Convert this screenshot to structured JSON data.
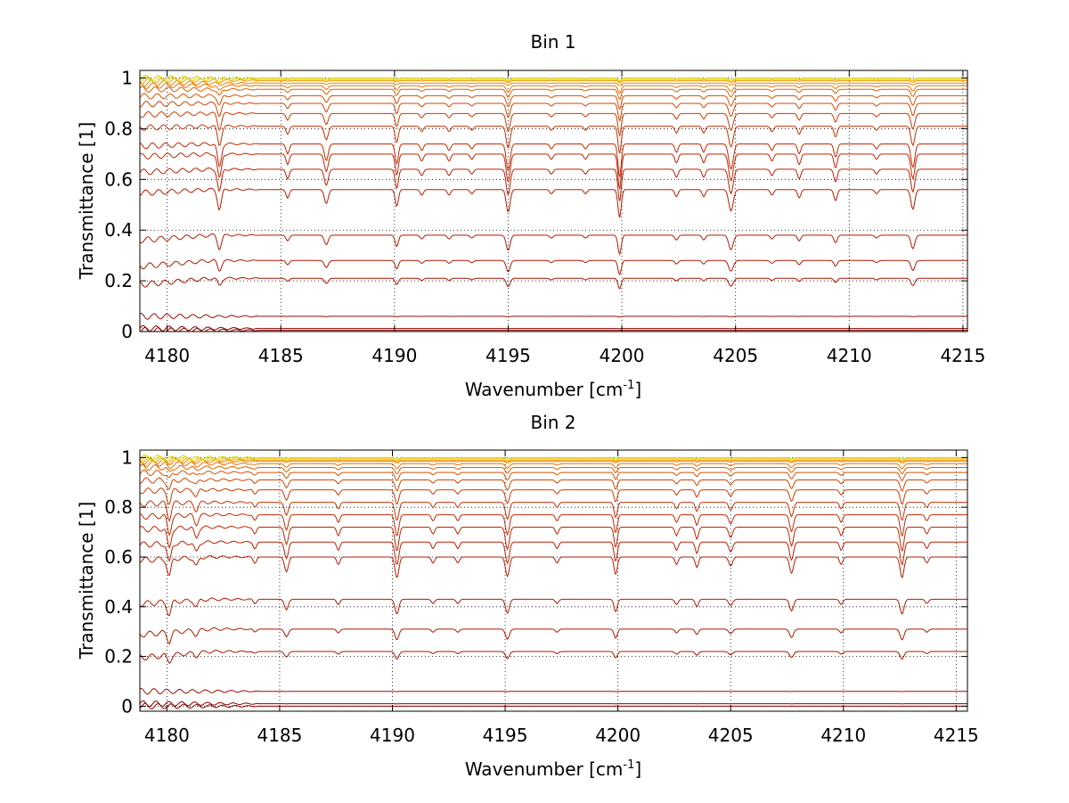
{
  "chart_data": [
    {
      "type": "line",
      "title": "Bin 1",
      "xlabel": "Wavenumber [cm",
      "xlabel_sup": "-1",
      "xlabel_end": "]",
      "ylabel": "Transmittance [1]",
      "xlim": [
        4178.8,
        4215.2
      ],
      "ylim": [
        0,
        1.03
      ],
      "grid": true,
      "xticks": [
        4180,
        4185,
        4190,
        4195,
        4200,
        4205,
        4210,
        4215
      ],
      "xtick_labels": [
        "4180",
        "4185",
        "4190",
        "4195",
        "4200",
        "4205",
        "4210",
        "4215"
      ],
      "yticks": [
        0,
        0.2,
        0.4,
        0.6,
        0.8,
        1
      ],
      "ytick_labels": [
        "0",
        "0.2",
        "0.4",
        "0.6",
        "0.8",
        "1"
      ],
      "baseline_levels": [
        0.005,
        0.012,
        0.06,
        0.21,
        0.28,
        0.38,
        0.56,
        0.64,
        0.7,
        0.74,
        0.81,
        0.86,
        0.9,
        0.93,
        0.955,
        0.97,
        0.98,
        0.99,
        0.995,
        1.0
      ],
      "line_colors": [
        "#8b0000",
        "#8b0000",
        "#9a0c00",
        "#a81400",
        "#b01800",
        "#b41a00",
        "#b81c00",
        "#bc1e00",
        "#c02400",
        "#c42800",
        "#c83000",
        "#cc3a00",
        "#d04400",
        "#d85000",
        "#e06000",
        "#e87200",
        "#f08400",
        "#f59a00",
        "#f8c000",
        "#c8e000"
      ],
      "absorption_lines": [
        {
          "x": 4182.3,
          "depth": 0.14,
          "width": 0.12
        },
        {
          "x": 4185.3,
          "depth": 0.06,
          "width": 0.1
        },
        {
          "x": 4187.0,
          "depth": 0.1,
          "width": 0.12
        },
        {
          "x": 4190.1,
          "depth": 0.12,
          "width": 0.1
        },
        {
          "x": 4191.2,
          "depth": 0.04,
          "width": 0.1
        },
        {
          "x": 4192.4,
          "depth": 0.04,
          "width": 0.1
        },
        {
          "x": 4193.4,
          "depth": 0.03,
          "width": 0.1
        },
        {
          "x": 4195.0,
          "depth": 0.16,
          "width": 0.12
        },
        {
          "x": 4196.9,
          "depth": 0.03,
          "width": 0.1
        },
        {
          "x": 4198.4,
          "depth": 0.03,
          "width": 0.1
        },
        {
          "x": 4199.9,
          "depth": 0.2,
          "width": 0.1
        },
        {
          "x": 4202.4,
          "depth": 0.05,
          "width": 0.1
        },
        {
          "x": 4203.6,
          "depth": 0.05,
          "width": 0.1
        },
        {
          "x": 4204.8,
          "depth": 0.15,
          "width": 0.14
        },
        {
          "x": 4206.6,
          "depth": 0.04,
          "width": 0.1
        },
        {
          "x": 4207.8,
          "depth": 0.06,
          "width": 0.1
        },
        {
          "x": 4209.4,
          "depth": 0.08,
          "width": 0.1
        },
        {
          "x": 4211.2,
          "depth": 0.03,
          "width": 0.1
        },
        {
          "x": 4212.8,
          "depth": 0.14,
          "width": 0.12
        }
      ]
    },
    {
      "type": "line",
      "title": "Bin 2",
      "xlabel": "Wavenumber [cm",
      "xlabel_sup": "-1",
      "xlabel_end": "]",
      "ylabel": "Transmittance [1]",
      "xlim": [
        4178.8,
        4215.5
      ],
      "ylim": [
        -0.02,
        1.03
      ],
      "grid": true,
      "xticks": [
        4180,
        4185,
        4190,
        4195,
        4200,
        4205,
        4210,
        4215
      ],
      "xtick_labels": [
        "4180",
        "4185",
        "4190",
        "4195",
        "4200",
        "4205",
        "4210",
        "4215"
      ],
      "yticks": [
        0,
        0.2,
        0.4,
        0.6,
        0.8,
        1
      ],
      "ytick_labels": [
        "0",
        "0.2",
        "0.4",
        "0.6",
        "0.8",
        "1"
      ],
      "baseline_levels": [
        0.0,
        0.01,
        0.06,
        0.22,
        0.31,
        0.43,
        0.6,
        0.66,
        0.72,
        0.77,
        0.82,
        0.87,
        0.91,
        0.94,
        0.96,
        0.975,
        0.985,
        0.99,
        0.995,
        1.0
      ],
      "line_colors": [
        "#8b0000",
        "#8b0000",
        "#9a0c00",
        "#a81400",
        "#b01800",
        "#b41a00",
        "#b81c00",
        "#bc1e00",
        "#c02400",
        "#c42800",
        "#c83000",
        "#cc3a00",
        "#d04400",
        "#d85000",
        "#e06000",
        "#e87200",
        "#f08400",
        "#f59a00",
        "#f8c000",
        "#c8e000"
      ],
      "absorption_lines": [
        {
          "x": 4180.1,
          "depth": 0.12,
          "width": 0.12
        },
        {
          "x": 4181.3,
          "depth": 0.06,
          "width": 0.12
        },
        {
          "x": 4183.9,
          "depth": 0.04,
          "width": 0.1
        },
        {
          "x": 4185.3,
          "depth": 0.1,
          "width": 0.12
        },
        {
          "x": 4187.6,
          "depth": 0.05,
          "width": 0.1
        },
        {
          "x": 4190.2,
          "depth": 0.14,
          "width": 0.12
        },
        {
          "x": 4191.8,
          "depth": 0.04,
          "width": 0.1
        },
        {
          "x": 4192.9,
          "depth": 0.04,
          "width": 0.1
        },
        {
          "x": 4195.1,
          "depth": 0.13,
          "width": 0.12
        },
        {
          "x": 4197.3,
          "depth": 0.04,
          "width": 0.1
        },
        {
          "x": 4199.9,
          "depth": 0.12,
          "width": 0.1
        },
        {
          "x": 4202.6,
          "depth": 0.05,
          "width": 0.1
        },
        {
          "x": 4203.5,
          "depth": 0.07,
          "width": 0.1
        },
        {
          "x": 4205.0,
          "depth": 0.06,
          "width": 0.12
        },
        {
          "x": 4207.7,
          "depth": 0.11,
          "width": 0.12
        },
        {
          "x": 4209.9,
          "depth": 0.05,
          "width": 0.1
        },
        {
          "x": 4212.6,
          "depth": 0.14,
          "width": 0.12
        },
        {
          "x": 4213.7,
          "depth": 0.04,
          "width": 0.1
        }
      ]
    }
  ]
}
